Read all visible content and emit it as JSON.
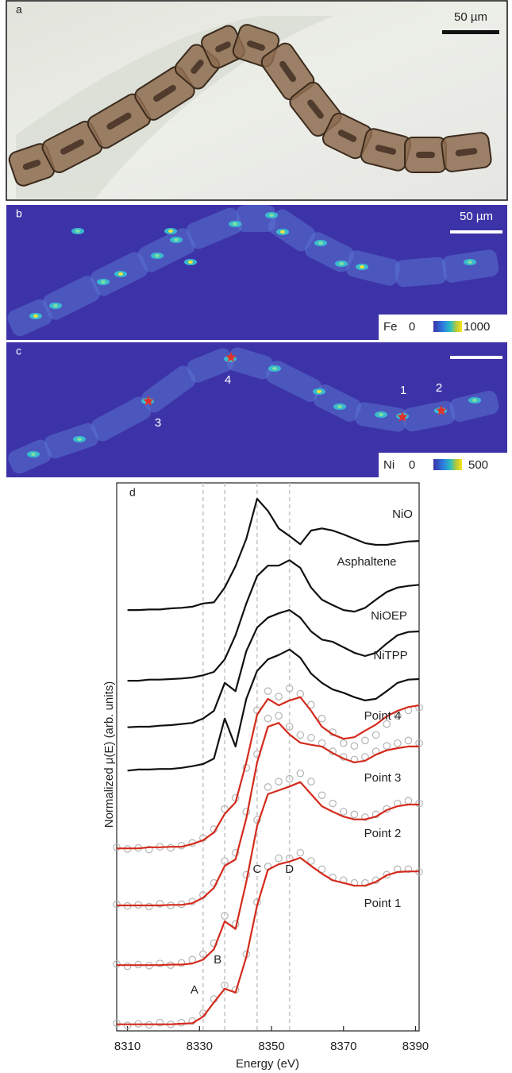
{
  "panels": {
    "a": {
      "label": "a",
      "scale_bar": "50 µm"
    },
    "b": {
      "label": "b",
      "scale_bar": "50 µm",
      "element": "Fe",
      "colorbar_min": 0,
      "colorbar_max": 1000
    },
    "c": {
      "label": "c",
      "element": "Ni",
      "colorbar_min": 0,
      "colorbar_max": 500,
      "points": [
        "1",
        "2",
        "3",
        "4"
      ]
    }
  },
  "chart_data": {
    "type": "line",
    "panel_label": "d",
    "x_label": "Energy (eV)",
    "y_label": "Normalized μ(E) (arb. units)",
    "xlim": [
      8307,
      8391
    ],
    "xticks": [
      8310,
      8330,
      8350,
      8370,
      8390
    ],
    "ylim": [
      0,
      100
    ],
    "yticks": [],
    "features": [
      {
        "label": "A",
        "x": 8331
      },
      {
        "label": "B",
        "x": 8337
      },
      {
        "label": "C",
        "x": 8346
      },
      {
        "label": "D",
        "x": 8355
      }
    ],
    "x": [
      8307,
      8310,
      8313,
      8316,
      8319,
      8322,
      8325,
      8328,
      8331,
      8334,
      8337,
      8340,
      8343,
      8346,
      8349,
      8352,
      8355,
      8358,
      8361,
      8364,
      8367,
      8370,
      8373,
      8376,
      8379,
      8382,
      8385,
      8388,
      8391
    ],
    "series": [
      {
        "name": "NiO",
        "color": "#111111",
        "values": [
          null,
          76.8,
          76.8,
          76.9,
          76.9,
          77.1,
          77.2,
          77.4,
          78.0,
          78.2,
          80.9,
          84.8,
          89.8,
          97.1,
          94.9,
          91.7,
          90.3,
          88.8,
          91.3,
          91.7,
          91.3,
          90.6,
          89.8,
          89.0,
          88.7,
          88.7,
          89.0,
          89.3,
          89.4
        ]
      },
      {
        "name": "Asphaltene",
        "color": "#111111",
        "values": [
          null,
          63.9,
          63.9,
          64.1,
          64.1,
          64.2,
          64.3,
          64.5,
          64.9,
          65.5,
          67.8,
          72.2,
          78.0,
          83.0,
          84.9,
          84.9,
          85.9,
          84.5,
          80.9,
          78.7,
          77.7,
          76.8,
          76.5,
          77.2,
          78.7,
          80.1,
          80.9,
          81.2,
          81.4
        ]
      },
      {
        "name": "NiOEP",
        "color": "#111111",
        "values": [
          null,
          55.4,
          55.5,
          55.5,
          55.7,
          55.8,
          56.0,
          56.2,
          57.0,
          58.4,
          63.5,
          62.0,
          69.3,
          73.6,
          75.4,
          76.2,
          76.8,
          75.4,
          72.9,
          71.4,
          71.0,
          70.0,
          69.0,
          68.4,
          69.0,
          70.7,
          72.2,
          72.8,
          72.9
        ]
      },
      {
        "name": "NiTPP",
        "color": "#111111",
        "values": [
          null,
          47.5,
          47.7,
          47.7,
          47.8,
          47.8,
          48.0,
          48.3,
          48.7,
          49.7,
          57.0,
          51.9,
          60.6,
          65.7,
          67.8,
          68.6,
          69.6,
          68.1,
          65.2,
          63.5,
          62.3,
          61.7,
          60.9,
          60.3,
          60.6,
          62.0,
          63.5,
          64.1,
          64.2
        ]
      },
      {
        "name": "Point 4",
        "color": "#d42a1c",
        "marker_color": "#b4b4b4",
        "values": [
          33.3,
          33.3,
          33.3,
          33.5,
          33.5,
          33.6,
          33.6,
          34.1,
          34.8,
          36.2,
          39.6,
          41.7,
          49.0,
          57.7,
          60.6,
          59.4,
          60.3,
          60.9,
          58.4,
          55.5,
          54.1,
          53.3,
          53.6,
          54.8,
          55.9,
          57.4,
          58.4,
          59.1,
          59.4
        ],
        "measured": [
          33.5,
          33.2,
          33.4,
          33.1,
          33.6,
          33.4,
          33.8,
          34.3,
          35.2,
          36.8,
          40.5,
          42.5,
          48.0,
          58.5,
          62.0,
          61.0,
          62.5,
          61.5,
          59.5,
          57.0,
          54.5,
          52.5,
          52.0,
          53.0,
          54.0,
          56.0,
          57.5,
          58.5,
          59.0
        ]
      },
      {
        "name": "Point 3",
        "color": "#d42a1c",
        "marker_color": "#b4b4b4",
        "values": [
          22.9,
          22.9,
          22.9,
          22.9,
          22.9,
          23.0,
          23.0,
          23.3,
          24.3,
          26.1,
          30.1,
          31.3,
          38.8,
          49.0,
          55.5,
          56.2,
          54.1,
          52.6,
          52.2,
          51.9,
          50.7,
          49.7,
          49.0,
          49.3,
          50.4,
          51.2,
          51.6,
          51.9,
          51.9
        ],
        "measured": [
          23.1,
          22.8,
          23.0,
          22.7,
          23.2,
          22.9,
          23.1,
          23.6,
          24.8,
          27.0,
          31.0,
          32.5,
          40.0,
          50.5,
          57.0,
          57.5,
          55.5,
          54.0,
          53.5,
          52.5,
          51.0,
          50.0,
          49.5,
          50.0,
          51.0,
          52.0,
          52.5,
          53.0,
          52.5
        ]
      },
      {
        "name": "Point 2",
        "color": "#d42a1c",
        "marker_color": "#b4b4b4",
        "values": [
          12.0,
          12.0,
          12.0,
          12.0,
          12.0,
          12.1,
          12.1,
          12.3,
          13.0,
          14.9,
          20.0,
          18.6,
          27.2,
          37.4,
          43.2,
          43.9,
          44.6,
          45.4,
          43.2,
          41.0,
          40.0,
          39.1,
          38.6,
          38.6,
          39.1,
          40.3,
          41.0,
          41.3,
          41.3
        ],
        "measured": [
          12.2,
          11.8,
          12.1,
          11.9,
          12.3,
          12.0,
          12.4,
          13.0,
          14.0,
          16.0,
          21.0,
          19.5,
          28.5,
          38.5,
          44.5,
          45.5,
          46.0,
          47.0,
          45.5,
          43.0,
          41.5,
          40.0,
          39.5,
          39.0,
          39.5,
          40.5,
          41.5,
          42.0,
          41.5
        ]
      },
      {
        "name": "Point 1",
        "color": "#d42a1c",
        "marker_color": "#b4b4b4",
        "values": [
          1.2,
          1.2,
          1.2,
          1.2,
          1.2,
          1.2,
          1.3,
          1.4,
          2.6,
          5.2,
          7.7,
          7.0,
          13.5,
          22.9,
          29.4,
          30.4,
          30.9,
          31.6,
          30.1,
          28.7,
          27.5,
          27.0,
          26.5,
          26.5,
          27.2,
          28.4,
          29.0,
          29.1,
          29.1
        ],
        "measured": [
          1.4,
          1.0,
          1.3,
          1.1,
          1.5,
          1.2,
          1.5,
          1.8,
          3.2,
          5.8,
          8.3,
          7.5,
          14.0,
          23.5,
          30.0,
          31.5,
          31.5,
          32.5,
          31.0,
          29.5,
          28.0,
          27.5,
          27.0,
          27.0,
          27.5,
          28.5,
          29.5,
          29.5,
          29.0
        ]
      }
    ]
  }
}
